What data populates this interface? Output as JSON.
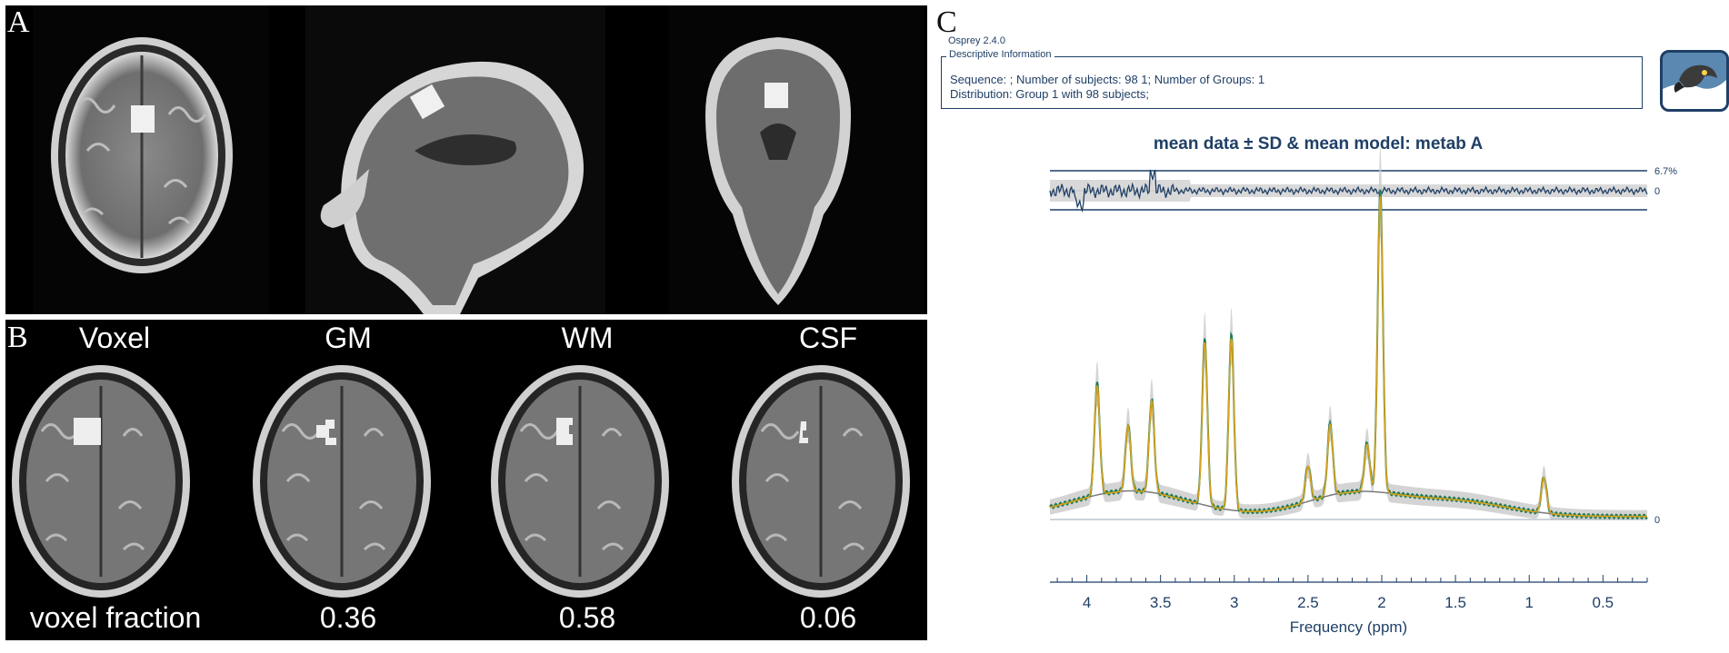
{
  "panels": {
    "a_label": "A",
    "b_label": "B",
    "c_label": "C"
  },
  "panel_b": {
    "column_labels": [
      "Voxel",
      "GM",
      "WM",
      "CSF"
    ],
    "row_label": "voxel fraction",
    "fractions": [
      "0.36",
      "0.58",
      "0.06"
    ]
  },
  "panel_c": {
    "software": "Osprey 2.4.0",
    "desc_legend": "Descriptive Information",
    "desc_line1": "Sequence: ; Number of subjects: 98   1; Number of Groups: 1",
    "desc_line2": "Distribution: Group 1 with 98 subjects;",
    "logo_icon": "osprey-bird-icon"
  },
  "colors": {
    "navy": "#1f3f66",
    "data": "#1b7a55",
    "model": "#d9a21a",
    "baseline": "#7a7a7a",
    "sd_band": "#c9c9c9"
  },
  "chart_data": {
    "type": "line",
    "title": "mean data ± SD & mean model: metab A",
    "xlabel": "Frequency (ppm)",
    "x_ticks": [
      "4",
      "3.5",
      "3",
      "2.5",
      "2",
      "1.5",
      "1",
      "0.5"
    ],
    "xlim": [
      4.25,
      0.2
    ],
    "x_reversed": true,
    "residual_labels": [
      "6.7%",
      "0"
    ],
    "spectrum_zero_label": "0",
    "series": [],
    "peaks": [
      {
        "ppm": 3.93,
        "height": 0.37
      },
      {
        "ppm": 3.72,
        "height": 0.22
      },
      {
        "ppm": 3.56,
        "height": 0.31
      },
      {
        "ppm": 3.2,
        "height": 0.55
      },
      {
        "ppm": 3.02,
        "height": 0.58
      },
      {
        "ppm": 2.5,
        "height": 0.12
      },
      {
        "ppm": 2.35,
        "height": 0.24
      },
      {
        "ppm": 2.1,
        "height": 0.16
      },
      {
        "ppm": 2.01,
        "height": 1.0
      },
      {
        "ppm": 0.9,
        "height": 0.12
      }
    ]
  }
}
